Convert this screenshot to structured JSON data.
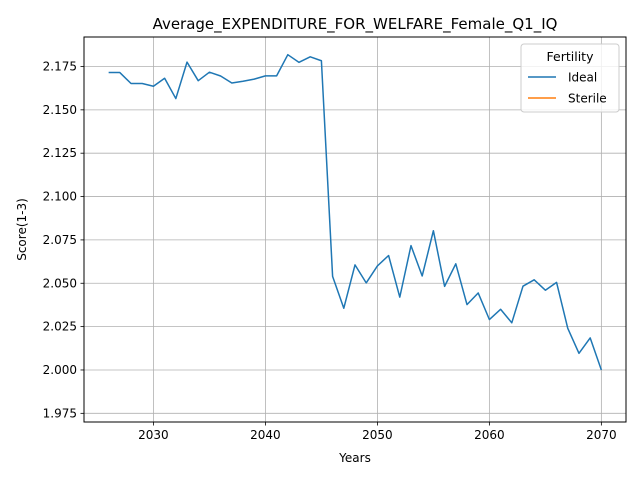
{
  "chart_data": {
    "type": "line",
    "title": "Average_EXPENDITURE_FOR_WELFARE_Female_Q1_IQ",
    "xlabel": "Years",
    "ylabel": "Score(1-3)",
    "xlim": [
      2023.8,
      2072.2
    ],
    "ylim": [
      1.97,
      2.192
    ],
    "xticks": [
      2030,
      2040,
      2050,
      2060,
      2070
    ],
    "yticks": [
      1.975,
      2.0,
      2.025,
      2.05,
      2.075,
      2.1,
      2.125,
      2.15,
      2.175
    ],
    "grid": true,
    "legend": {
      "title": "Fertility",
      "placement": "top-right"
    },
    "series": [
      {
        "name": "Ideal",
        "color": "#1f77b4",
        "x": [
          2026,
          2027,
          2028,
          2029,
          2030,
          2031,
          2032,
          2033,
          2034,
          2035,
          2036,
          2037,
          2038,
          2039,
          2040,
          2041,
          2042,
          2043,
          2044,
          2045,
          2046,
          2047,
          2048,
          2049,
          2050,
          2051,
          2052,
          2053,
          2054,
          2055,
          2056,
          2057,
          2058,
          2059,
          2060,
          2061,
          2062,
          2063,
          2064,
          2065,
          2066,
          2067,
          2068,
          2069,
          2070
        ],
        "values": [
          2.1715,
          2.1715,
          2.1652,
          2.1652,
          2.1636,
          2.1682,
          2.1565,
          2.1775,
          2.1668,
          2.1717,
          2.1695,
          2.1655,
          2.1665,
          2.1677,
          2.1696,
          2.1696,
          2.1818,
          2.1774,
          2.1806,
          2.1783,
          2.054,
          2.0356,
          2.0606,
          2.0502,
          2.06,
          2.066,
          2.042,
          2.0717,
          2.0542,
          2.0803,
          2.0482,
          2.0612,
          2.0377,
          2.0444,
          2.0291,
          2.035,
          2.0272,
          2.0483,
          2.052,
          2.046,
          2.0505,
          2.024,
          2.0096,
          2.0185,
          2.0
        ]
      },
      {
        "name": "Sterile",
        "color": "#ff7f0e",
        "x": [],
        "values": []
      }
    ]
  }
}
